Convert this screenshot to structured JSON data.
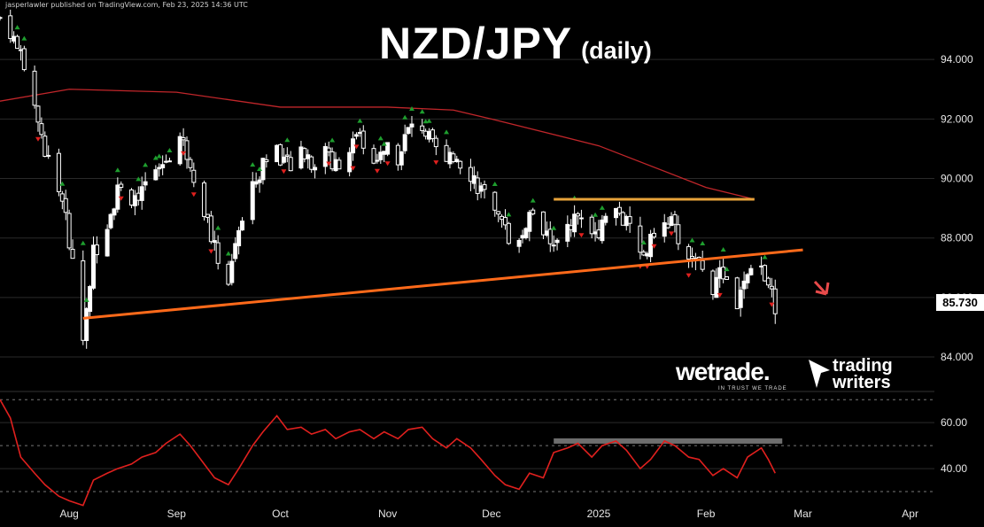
{
  "header": {
    "published": "jasperlawler published on TradingView.com, Feb 23, 2025 14:36 UTC"
  },
  "chart_title": {
    "main": "NZD/JPY",
    "sub": "(daily)"
  },
  "logos": {
    "wetrade": "wetrade.",
    "wetrade_tagline": "IN TRUST WE TRADE",
    "trading_writers_line1": "trading",
    "trading_writers_line2": "writers"
  },
  "colors": {
    "background": "#000000",
    "bull_candle": "#ffffff",
    "bear_candle": "#ffffff",
    "trendline": "#ff6a1a",
    "resistance": "#e8a33a",
    "ma": "#c0262a",
    "rsi": "#e0201e",
    "arrow_up": "#1e9e2e",
    "arrow_down": "#e0201e"
  },
  "chart_data": [
    {
      "type": "candlestick",
      "symbol": "NZD/JPY",
      "timeframe": "daily",
      "current_price": "85.730",
      "ylim": [
        82.9,
        96.0
      ],
      "yticks": [
        "84.000",
        "86.000",
        "88.000",
        "90.000",
        "92.000",
        "94.000"
      ],
      "x_range": [
        "2024-07-12",
        "2025-04-08"
      ],
      "xticks": [
        {
          "label": "Aug",
          "date": "2024-08-01"
        },
        {
          "label": "Sep",
          "date": "2024-09-01"
        },
        {
          "label": "Oct",
          "date": "2024-10-01"
        },
        {
          "label": "Nov",
          "date": "2024-11-01"
        },
        {
          "label": "Dec",
          "date": "2024-12-01"
        },
        {
          "label": "2025",
          "date": "2025-01-01"
        },
        {
          "label": "Feb",
          "date": "2025-02-01"
        },
        {
          "label": "Mar",
          "date": "2025-03-01"
        },
        {
          "label": "Apr",
          "date": "2025-04-01"
        }
      ],
      "close_path": [
        [
          "2024-07-12",
          95.4
        ],
        [
          "2024-07-15",
          95.0
        ],
        [
          "2024-07-18",
          94.0
        ],
        [
          "2024-07-22",
          92.5
        ],
        [
          "2024-07-25",
          91.0
        ],
        [
          "2024-07-29",
          89.6
        ],
        [
          "2024-08-01",
          88.0
        ],
        [
          "2024-08-05",
          84.6
        ],
        [
          "2024-08-08",
          87.5
        ],
        [
          "2024-08-12",
          88.6
        ],
        [
          "2024-08-15",
          89.6
        ],
        [
          "2024-08-19",
          89.4
        ],
        [
          "2024-08-22",
          89.6
        ],
        [
          "2024-08-26",
          90.2
        ],
        [
          "2024-08-29",
          90.6
        ],
        [
          "2024-09-02",
          91.4
        ],
        [
          "2024-09-05",
          90.6
        ],
        [
          "2024-09-09",
          89.0
        ],
        [
          "2024-09-12",
          87.6
        ],
        [
          "2024-09-16",
          86.6
        ],
        [
          "2024-09-19",
          88.2
        ],
        [
          "2024-09-23",
          89.6
        ],
        [
          "2024-09-26",
          90.6
        ],
        [
          "2024-09-30",
          91.0
        ],
        [
          "2024-10-03",
          90.4
        ],
        [
          "2024-10-07",
          91.2
        ],
        [
          "2024-10-10",
          90.6
        ],
        [
          "2024-10-14",
          90.8
        ],
        [
          "2024-10-17",
          90.5
        ],
        [
          "2024-10-21",
          91.0
        ],
        [
          "2024-10-24",
          91.4
        ],
        [
          "2024-10-28",
          90.8
        ],
        [
          "2024-10-31",
          91.2
        ],
        [
          "2024-11-04",
          90.8
        ],
        [
          "2024-11-07",
          91.6
        ],
        [
          "2024-11-11",
          91.8
        ],
        [
          "2024-11-14",
          91.0
        ],
        [
          "2024-11-18",
          90.4
        ],
        [
          "2024-11-21",
          90.8
        ],
        [
          "2024-11-25",
          90.2
        ],
        [
          "2024-11-28",
          89.6
        ],
        [
          "2024-12-02",
          88.6
        ],
        [
          "2024-12-05",
          88.2
        ],
        [
          "2024-12-09",
          87.8
        ],
        [
          "2024-12-12",
          88.8
        ],
        [
          "2024-12-16",
          88.4
        ],
        [
          "2024-12-19",
          87.6
        ],
        [
          "2024-12-23",
          88.4
        ],
        [
          "2024-12-26",
          88.8
        ],
        [
          "2024-12-30",
          88.2
        ],
        [
          "2025-01-02",
          88.4
        ],
        [
          "2025-01-06",
          89.0
        ],
        [
          "2025-01-09",
          88.4
        ],
        [
          "2025-01-13",
          87.4
        ],
        [
          "2025-01-16",
          87.8
        ],
        [
          "2025-01-20",
          88.8
        ],
        [
          "2025-01-23",
          88.2
        ],
        [
          "2025-01-27",
          87.4
        ],
        [
          "2025-01-30",
          87.0
        ],
        [
          "2025-02-03",
          86.4
        ],
        [
          "2025-02-06",
          86.8
        ],
        [
          "2025-02-10",
          85.8
        ],
        [
          "2025-02-13",
          86.6
        ],
        [
          "2025-02-17",
          87.0
        ],
        [
          "2025-02-19",
          86.6
        ],
        [
          "2025-02-21",
          85.73
        ]
      ],
      "moving_average": [
        [
          "2024-07-12",
          92.6
        ],
        [
          "2024-08-01",
          93.0
        ],
        [
          "2024-09-01",
          92.9
        ],
        [
          "2024-10-01",
          92.4
        ],
        [
          "2024-11-01",
          92.4
        ],
        [
          "2024-11-20",
          92.3
        ],
        [
          "2024-12-01",
          92.0
        ],
        [
          "2025-01-01",
          91.1
        ],
        [
          "2025-02-01",
          89.7
        ],
        [
          "2025-02-15",
          89.3
        ]
      ],
      "lines": [
        {
          "name": "trendline",
          "points": [
            [
              "2024-08-05",
              85.3
            ],
            [
              "2025-03-01",
              87.6
            ]
          ]
        },
        {
          "name": "resistance",
          "points": [
            [
              "2024-12-19",
              89.3
            ],
            [
              "2025-02-15",
              89.3
            ]
          ]
        }
      ]
    },
    {
      "type": "line",
      "name": "RSI",
      "ylim": [
        25,
        72
      ],
      "yticks": [
        "40.00",
        "60.00"
      ],
      "dashed_levels": [
        30,
        50,
        70
      ],
      "shaded_level": {
        "value": 52,
        "from": "2024-12-19",
        "to": "2025-02-21"
      },
      "values": [
        [
          "2024-07-12",
          70
        ],
        [
          "2024-07-15",
          62
        ],
        [
          "2024-07-18",
          45
        ],
        [
          "2024-07-22",
          38
        ],
        [
          "2024-07-25",
          33
        ],
        [
          "2024-07-29",
          28
        ],
        [
          "2024-08-01",
          26
        ],
        [
          "2024-08-05",
          24
        ],
        [
          "2024-08-08",
          35
        ],
        [
          "2024-08-12",
          38
        ],
        [
          "2024-08-15",
          40
        ],
        [
          "2024-08-19",
          42
        ],
        [
          "2024-08-22",
          45
        ],
        [
          "2024-08-26",
          47
        ],
        [
          "2024-08-29",
          51
        ],
        [
          "2024-09-02",
          55
        ],
        [
          "2024-09-05",
          50
        ],
        [
          "2024-09-09",
          42
        ],
        [
          "2024-09-12",
          36
        ],
        [
          "2024-09-16",
          33
        ],
        [
          "2024-09-19",
          40
        ],
        [
          "2024-09-23",
          50
        ],
        [
          "2024-09-26",
          56
        ],
        [
          "2024-09-30",
          63
        ],
        [
          "2024-10-03",
          57
        ],
        [
          "2024-10-07",
          58
        ],
        [
          "2024-10-10",
          55
        ],
        [
          "2024-10-14",
          57
        ],
        [
          "2024-10-17",
          53
        ],
        [
          "2024-10-21",
          56
        ],
        [
          "2024-10-24",
          57
        ],
        [
          "2024-10-28",
          53
        ],
        [
          "2024-10-31",
          56
        ],
        [
          "2024-11-04",
          53
        ],
        [
          "2024-11-07",
          57
        ],
        [
          "2024-11-11",
          58
        ],
        [
          "2024-11-14",
          53
        ],
        [
          "2024-11-18",
          49
        ],
        [
          "2024-11-21",
          53
        ],
        [
          "2024-11-25",
          49
        ],
        [
          "2024-11-28",
          44
        ],
        [
          "2024-12-02",
          37
        ],
        [
          "2024-12-05",
          33
        ],
        [
          "2024-12-09",
          31
        ],
        [
          "2024-12-12",
          38
        ],
        [
          "2024-12-16",
          36
        ],
        [
          "2024-12-19",
          47
        ],
        [
          "2024-12-23",
          49
        ],
        [
          "2024-12-26",
          51
        ],
        [
          "2024-12-30",
          45
        ],
        [
          "2025-01-02",
          50
        ],
        [
          "2025-01-06",
          52
        ],
        [
          "2025-01-09",
          48
        ],
        [
          "2025-01-13",
          40
        ],
        [
          "2025-01-16",
          44
        ],
        [
          "2025-01-20",
          52
        ],
        [
          "2025-01-23",
          50
        ],
        [
          "2025-01-27",
          45
        ],
        [
          "2025-01-30",
          44
        ],
        [
          "2025-02-03",
          37
        ],
        [
          "2025-02-06",
          40
        ],
        [
          "2025-02-10",
          36
        ],
        [
          "2025-02-13",
          45
        ],
        [
          "2025-02-17",
          49
        ],
        [
          "2025-02-19",
          44
        ],
        [
          "2025-02-21",
          38
        ]
      ]
    }
  ]
}
